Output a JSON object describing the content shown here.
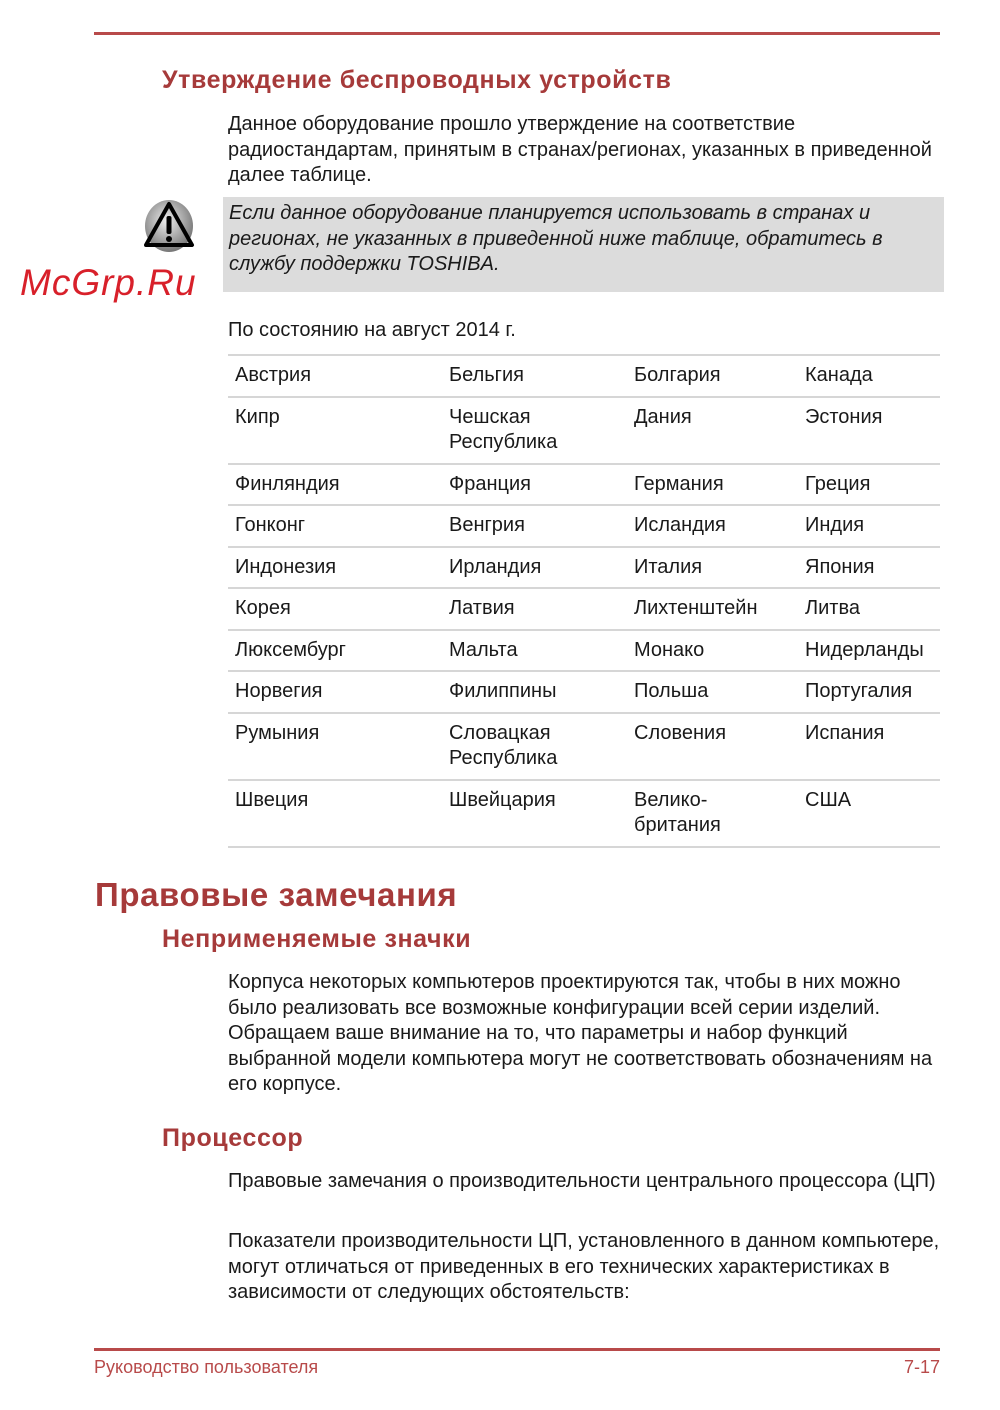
{
  "section1": {
    "title": "Утверждение беспроводных устройств",
    "intro": "Данное оборудование прошло утверждение на соответствие радиостандартам, принятым в странах/регионах, указанных в приведенной далее таблице.",
    "note_icon": "warning-triangle-icon",
    "note": "Если данное оборудование планируется использовать в странах и регионах, не указанных в приведенной ниже таблице, обратитесь в службу поддержки TOSHIBA.",
    "as_of": "По состоянию на август 2014 г.",
    "countries": [
      [
        "Австрия",
        "Бельгия",
        "Болгария",
        "Канада"
      ],
      [
        "Кипр",
        "Чешская Республика",
        "Дания",
        "Эстония"
      ],
      [
        "Финляндия",
        "Франция",
        "Германия",
        "Греция"
      ],
      [
        "Гонконг",
        "Венгрия",
        "Исландия",
        "Индия"
      ],
      [
        "Индонезия",
        "Ирландия",
        "Италия",
        "Япония"
      ],
      [
        "Корея",
        "Латвия",
        "Лихтенштейн",
        "Литва"
      ],
      [
        "Люксембург",
        "Мальта",
        "Монако",
        "Нидерланды"
      ],
      [
        "Норвегия",
        "Филиппины",
        "Польша",
        "Португалия"
      ],
      [
        "Румыния",
        "Словацкая Республика",
        "Словения",
        "Испания"
      ],
      [
        "Швеция",
        "Швейцария",
        "Велико-британия",
        "США"
      ]
    ]
  },
  "section2": {
    "title": "Правовые замечания",
    "sub1_title": "Неприменяемые значки",
    "sub1_text": "Корпуса некоторых компьютеров проектируются так, чтобы в них можно было реализовать все возможные конфигурации всей серии изделий. Обращаем ваше внимание на то, что параметры и набор функций выбранной модели компьютера могут не соответствовать обозначениям на его корпусе.",
    "sub2_title": "Процессор",
    "sub2_text1": "Правовые замечания о производительности центрального процессора (ЦП)",
    "sub2_text2": "Показатели производительности ЦП, установленного в данном компьютере, могут отличаться от приведенных в его технических характеристиках в зависимости от следующих обстоятельств:"
  },
  "watermark": "McGrp.Ru",
  "footer": {
    "left": "Руководство пользователя",
    "right": "7-17"
  },
  "colors": {
    "accent": "#a63a3a",
    "note_bg": "#dcdcdc",
    "rule": "#b84a4a"
  }
}
